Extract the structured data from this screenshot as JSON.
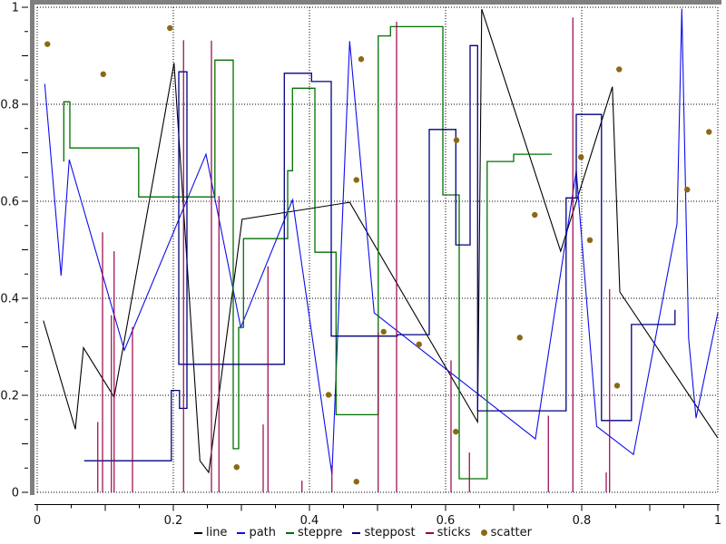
{
  "chart_data": {
    "type": "line",
    "title": "",
    "xlabel": "",
    "ylabel": "",
    "xlim": [
      0,
      1
    ],
    "ylim": [
      0,
      1
    ],
    "grid": "dotted",
    "legend_position": "bottom-center",
    "x_tick_values": [
      0,
      0.2,
      0.4,
      0.6,
      0.8,
      1
    ],
    "x_tick_labels": [
      "0",
      "0.2",
      "0.4",
      "0.6",
      "0.8",
      "1"
    ],
    "y_tick_values": [
      0,
      0.2,
      0.4,
      0.6,
      0.8,
      1
    ],
    "y_tick_labels": [
      "0",
      "0.2",
      "0.4",
      "0.6",
      "0.8",
      "1"
    ],
    "major_tick_step": 0.1,
    "minor_tick_step": 0.05,
    "series": [
      {
        "name": "line",
        "type": "line",
        "color": "#000000",
        "points": [
          [
            0.009,
            0.354
          ],
          [
            0.056,
            0.13
          ],
          [
            0.068,
            0.298
          ],
          [
            0.113,
            0.196
          ],
          [
            0.201,
            0.885
          ],
          [
            0.239,
            0.065
          ],
          [
            0.252,
            0.041
          ],
          [
            0.301,
            0.563
          ],
          [
            0.459,
            0.598
          ],
          [
            0.647,
            0.145
          ],
          [
            0.653,
            0.996
          ],
          [
            0.769,
            0.497
          ],
          [
            0.845,
            0.836
          ],
          [
            0.856,
            0.413
          ],
          [
            1.0,
            0.112
          ]
        ]
      },
      {
        "name": "path",
        "type": "line",
        "color": "#0d0dec",
        "points": [
          [
            0.011,
            0.842
          ],
          [
            0.035,
            0.447
          ],
          [
            0.047,
            0.686
          ],
          [
            0.128,
            0.293
          ],
          [
            0.248,
            0.697
          ],
          [
            0.299,
            0.34
          ],
          [
            0.375,
            0.603
          ],
          [
            0.433,
            0.037
          ],
          [
            0.459,
            0.93
          ],
          [
            0.495,
            0.37
          ],
          [
            0.732,
            0.11
          ],
          [
            0.792,
            0.663
          ],
          [
            0.822,
            0.136
          ],
          [
            0.876,
            0.078
          ],
          [
            0.94,
            0.553
          ],
          [
            0.947,
            0.997
          ],
          [
            0.957,
            0.318
          ],
          [
            0.968,
            0.153
          ],
          [
            1.0,
            0.37
          ]
        ]
      },
      {
        "name": "steppre",
        "type": "steppre",
        "color": "#007000",
        "points": [
          [
            0.039,
            0.682
          ],
          [
            0.048,
            0.805
          ],
          [
            0.149,
            0.71
          ],
          [
            0.261,
            0.609
          ],
          [
            0.288,
            0.891
          ],
          [
            0.296,
            0.09
          ],
          [
            0.303,
            0.34
          ],
          [
            0.368,
            0.523
          ],
          [
            0.375,
            0.663
          ],
          [
            0.408,
            0.833
          ],
          [
            0.439,
            0.495
          ],
          [
            0.501,
            0.16
          ],
          [
            0.519,
            0.941
          ],
          [
            0.596,
            0.96
          ],
          [
            0.62,
            0.613
          ],
          [
            0.661,
            0.028
          ],
          [
            0.7,
            0.682
          ],
          [
            0.756,
            0.697
          ]
        ]
      },
      {
        "name": "steppost",
        "type": "steppost",
        "color": "#000080",
        "points": [
          [
            0.069,
            0.065
          ],
          [
            0.197,
            0.21
          ],
          [
            0.209,
            0.173
          ],
          [
            0.22,
            0.867
          ],
          [
            0.208,
            0.264
          ],
          [
            0.363,
            0.864
          ],
          [
            0.403,
            0.847
          ],
          [
            0.432,
            0.322
          ],
          [
            0.529,
            0.325
          ],
          [
            0.576,
            0.748
          ],
          [
            0.615,
            0.51
          ],
          [
            0.636,
            0.921
          ],
          [
            0.647,
            0.168
          ],
          [
            0.777,
            0.607
          ],
          [
            0.792,
            0.779
          ],
          [
            0.829,
            0.148
          ],
          [
            0.873,
            0.346
          ],
          [
            0.937,
            0.376
          ]
        ]
      },
      {
        "name": "sticks",
        "type": "sticks",
        "color": "#96004b",
        "points": [
          [
            0.089,
            0.145
          ],
          [
            0.096,
            0.536
          ],
          [
            0.109,
            0.365
          ],
          [
            0.113,
            0.497
          ],
          [
            0.14,
            0.341
          ],
          [
            0.215,
            0.932
          ],
          [
            0.256,
            0.931
          ],
          [
            0.267,
            0.611
          ],
          [
            0.332,
            0.14
          ],
          [
            0.339,
            0.466
          ],
          [
            0.389,
            0.024
          ],
          [
            0.433,
            0.056
          ],
          [
            0.501,
            0.33
          ],
          [
            0.528,
            0.97
          ],
          [
            0.608,
            0.272
          ],
          [
            0.635,
            0.082
          ],
          [
            0.751,
            0.158
          ],
          [
            0.787,
            0.979
          ],
          [
            0.836,
            0.041
          ],
          [
            0.841,
            0.419
          ]
        ]
      },
      {
        "name": "scatter",
        "type": "scatter",
        "color": "#8b6914",
        "points": [
          [
            0.015,
            0.924
          ],
          [
            0.097,
            0.862
          ],
          [
            0.195,
            0.957
          ],
          [
            0.476,
            0.893
          ],
          [
            0.469,
            0.644
          ],
          [
            0.855,
            0.872
          ],
          [
            0.987,
            0.743
          ],
          [
            0.616,
            0.726
          ],
          [
            0.799,
            0.691
          ],
          [
            0.955,
            0.624
          ],
          [
            0.731,
            0.572
          ],
          [
            0.812,
            0.52
          ],
          [
            0.293,
            0.052
          ],
          [
            0.428,
            0.201
          ],
          [
            0.469,
            0.022
          ],
          [
            0.509,
            0.331
          ],
          [
            0.561,
            0.305
          ],
          [
            0.709,
            0.319
          ],
          [
            0.615,
            0.125
          ],
          [
            0.852,
            0.22
          ]
        ]
      }
    ],
    "frame_color": "#7f7f7f",
    "axis_color": "#000000",
    "grid_color": "#000000"
  }
}
